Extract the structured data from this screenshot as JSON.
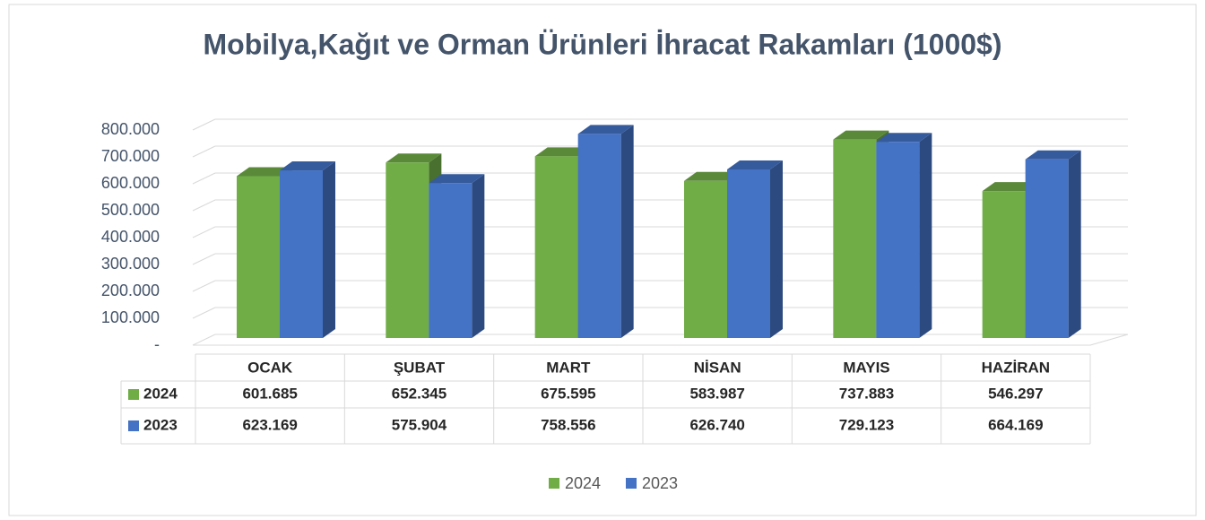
{
  "chart_data": {
    "type": "bar3d",
    "title": "Mobilya,Kağıt ve Orman Ürünleri İhracat Rakamları (1000$)",
    "categories": [
      "OCAK",
      "ŞUBAT",
      "MART",
      "NİSAN",
      "MAYIS",
      "HAZİRAN"
    ],
    "series": [
      {
        "name": "2024",
        "color": "#70ad47",
        "values": [
          601685,
          652345,
          675595,
          583987,
          737883,
          546297
        ],
        "value_labels": [
          "601.685",
          "652.345",
          "675.595",
          "583.987",
          "737.883",
          "546.297"
        ]
      },
      {
        "name": "2023",
        "color": "#4472c4",
        "values": [
          623169,
          575904,
          758556,
          626740,
          729123,
          664169
        ],
        "value_labels": [
          "623.169",
          "575.904",
          "758.556",
          "626.740",
          "729.123",
          "664.169"
        ]
      }
    ],
    "ylim": [
      0,
      800000
    ],
    "yticks": [
      {
        "value": 0,
        "label": "-"
      },
      {
        "value": 100000,
        "label": "100.000"
      },
      {
        "value": 200000,
        "label": "200.000"
      },
      {
        "value": 300000,
        "label": "300.000"
      },
      {
        "value": 400000,
        "label": "400.000"
      },
      {
        "value": 500000,
        "label": "500.000"
      },
      {
        "value": 600000,
        "label": "600.000"
      },
      {
        "value": 700000,
        "label": "700.000"
      },
      {
        "value": 800000,
        "label": "800.000"
      }
    ],
    "grid": true,
    "legend": "bottom"
  }
}
